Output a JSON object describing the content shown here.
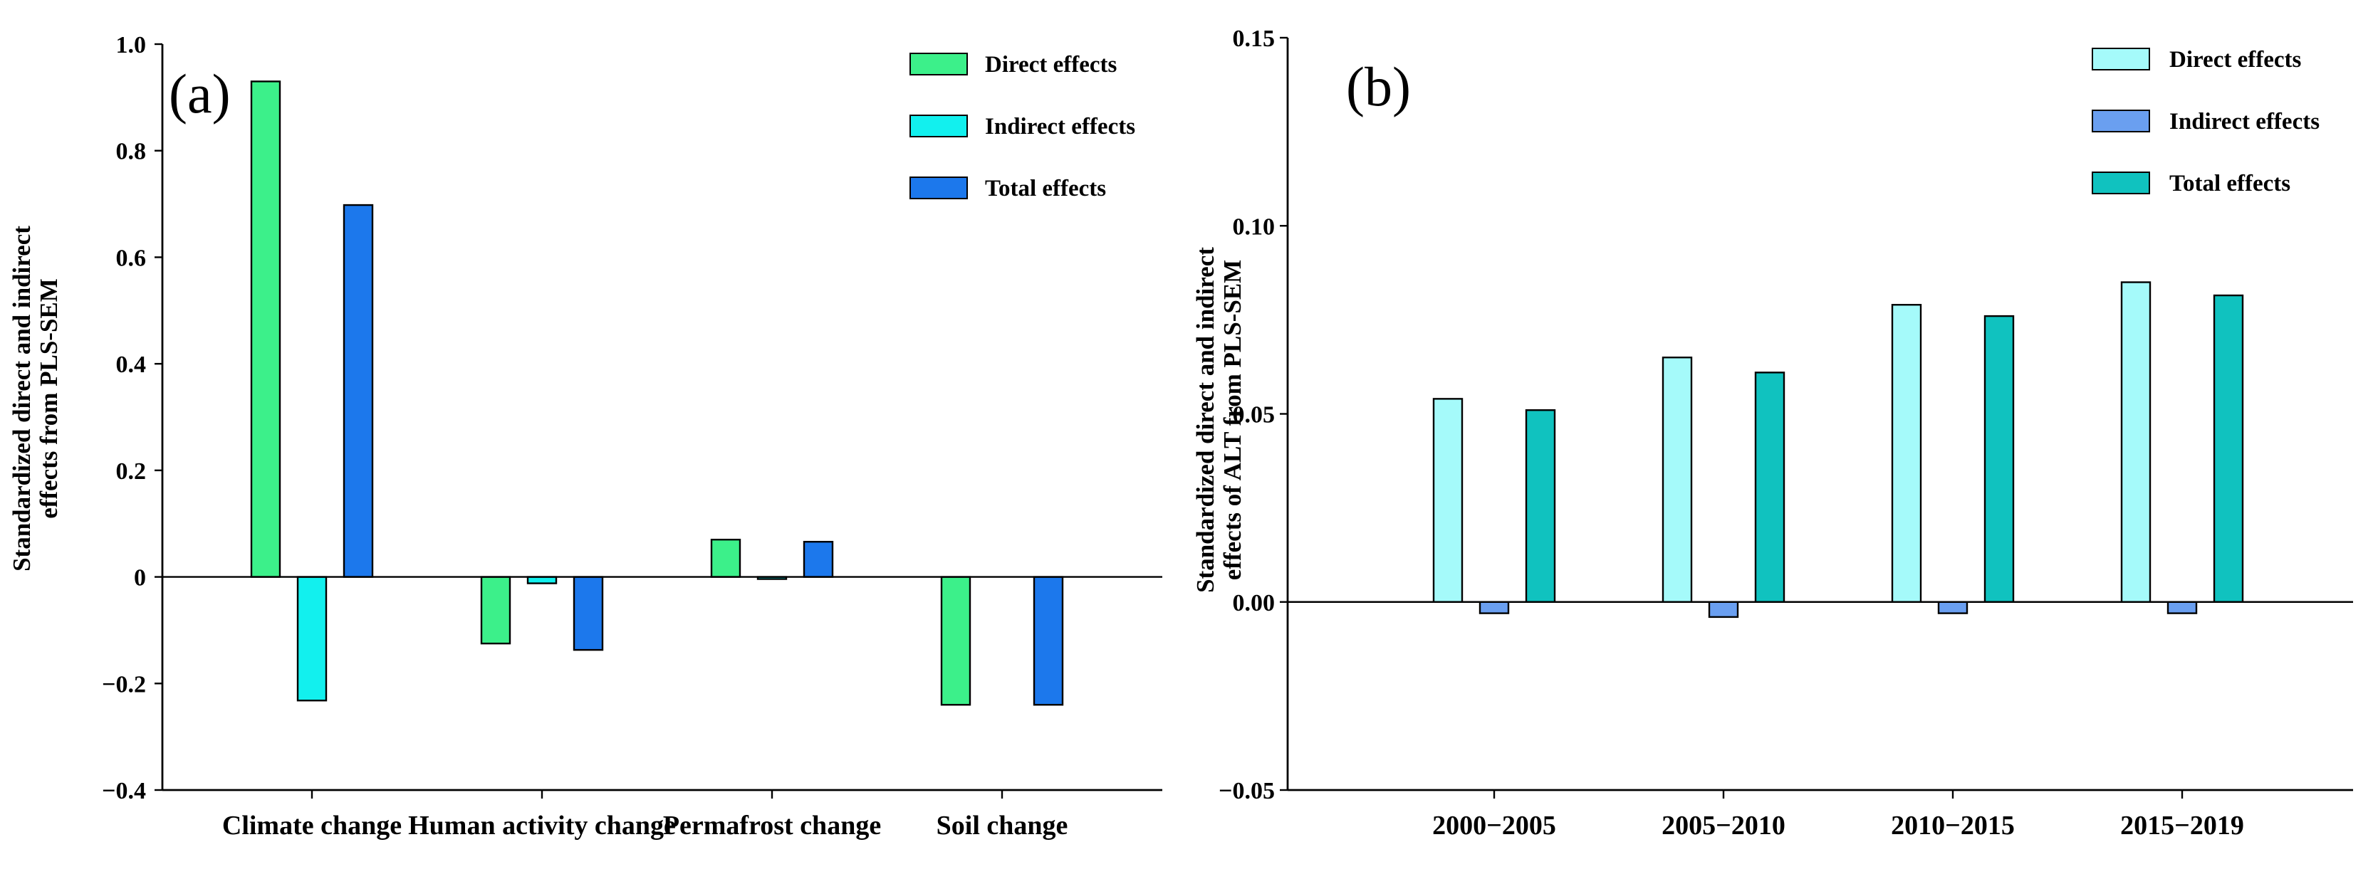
{
  "chart_data": [
    {
      "type": "bar",
      "panel_label": "(a)",
      "ylabel_lines": [
        "Standardized direct and indirect",
        "effects from PLS-SEM"
      ],
      "categories": [
        "Climate change",
        "Human activity change",
        "Permafrost change",
        "Soil change"
      ],
      "ylim": [
        -0.4,
        1.0
      ],
      "yticks": [
        -0.4,
        -0.2,
        0,
        0.2,
        0.4,
        0.6,
        0.8,
        1.0
      ],
      "ytick_labels": [
        "−0.4",
        "−0.2",
        "0",
        "0.2",
        "0.4",
        "0.6",
        "0.8",
        "1.0"
      ],
      "legend_position": "top-right",
      "series": [
        {
          "name": "Direct effects",
          "color": "#3cf08a",
          "values": [
            0.93,
            -0.125,
            0.07,
            -0.24
          ]
        },
        {
          "name": "Indirect effects",
          "color": "#12f0ee",
          "values": [
            -0.232,
            -0.012,
            -0.004,
            0
          ]
        },
        {
          "name": "Total effects",
          "color": "#1c78ec",
          "values": [
            0.698,
            -0.137,
            0.066,
            -0.24
          ]
        }
      ]
    },
    {
      "type": "bar",
      "panel_label": "(b)",
      "ylabel_lines": [
        "Standardized direct and indirect",
        "effects of ALT from PLS-SEM"
      ],
      "categories": [
        "2000−2005",
        "2005−2010",
        "2010−2015",
        "2015−2019"
      ],
      "ylim": [
        -0.05,
        0.15
      ],
      "yticks": [
        -0.05,
        0.0,
        0.05,
        0.1,
        0.15
      ],
      "ytick_labels": [
        "−0.05",
        "0.00",
        "0.05",
        "0.10",
        "0.15"
      ],
      "legend_position": "top-right",
      "series": [
        {
          "name": "Direct effects",
          "color": "#a5fafa",
          "values": [
            0.054,
            0.065,
            0.079,
            0.085
          ]
        },
        {
          "name": "Indirect effects",
          "color": "#6a9ff0",
          "values": [
            -0.003,
            -0.004,
            -0.003,
            -0.003
          ]
        },
        {
          "name": "Total effects",
          "color": "#10c2bf",
          "values": [
            0.051,
            0.061,
            0.076,
            0.0815
          ]
        }
      ]
    }
  ]
}
